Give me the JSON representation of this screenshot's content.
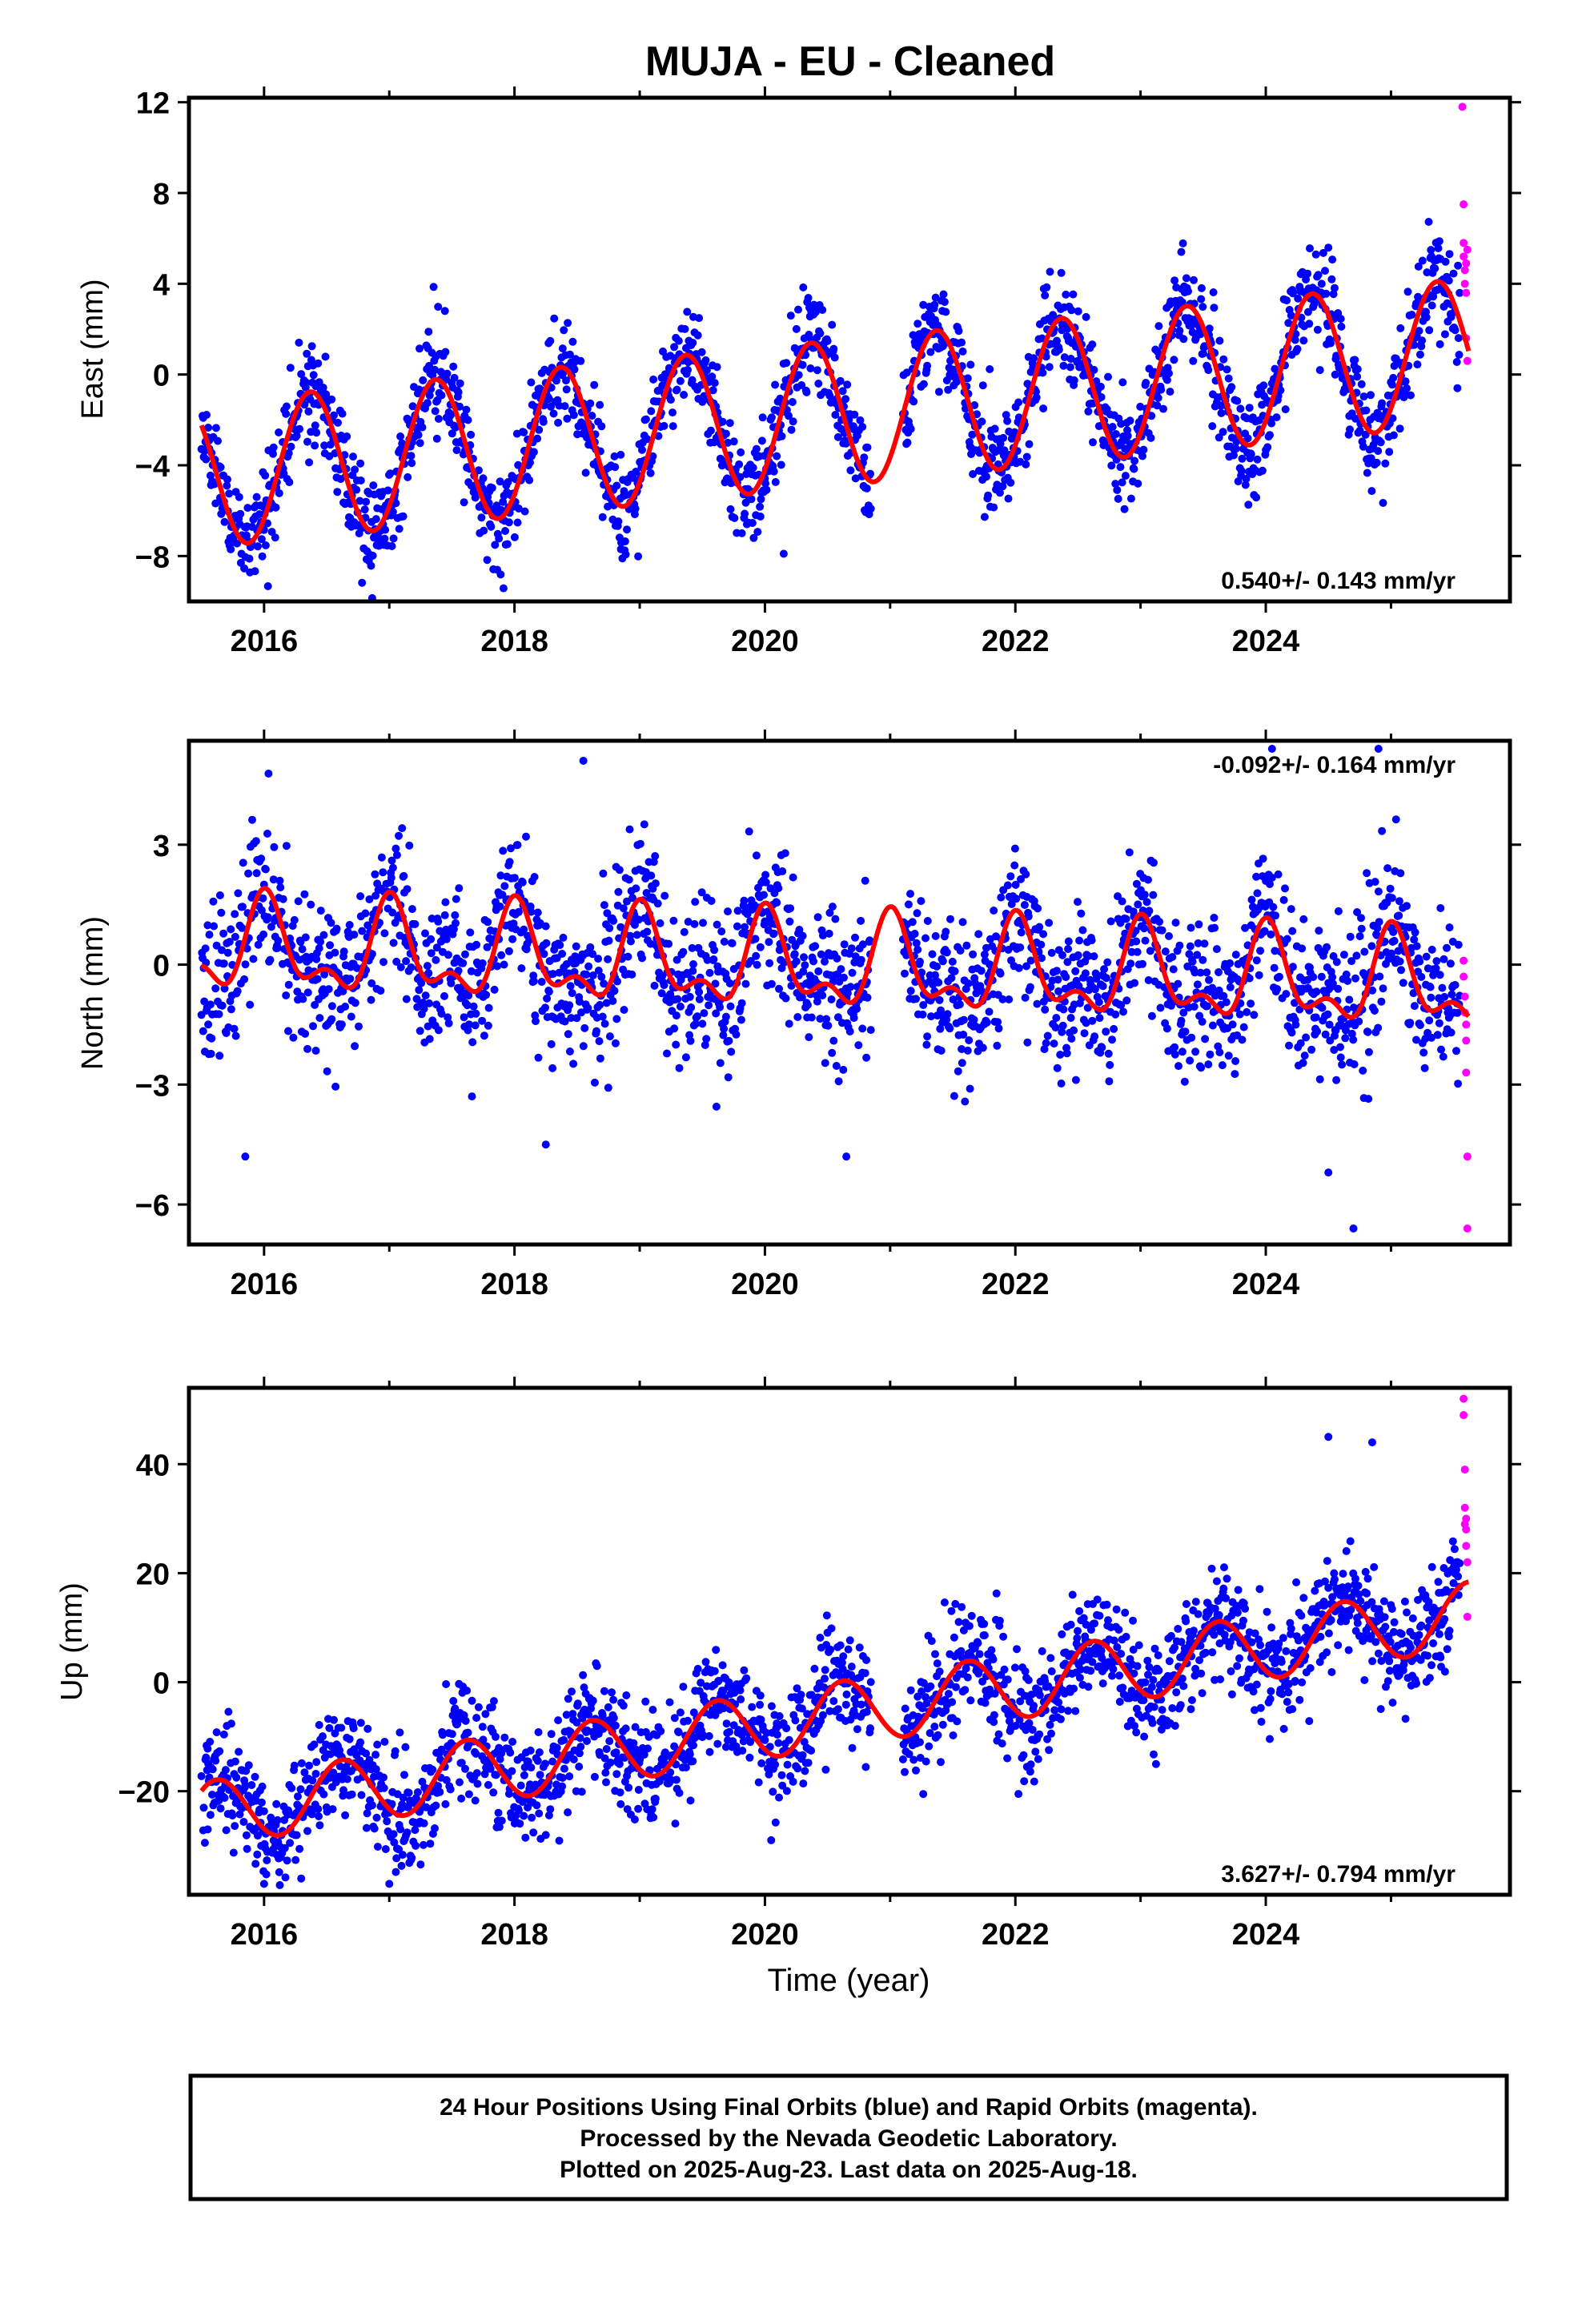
{
  "figure": {
    "title": "MUJA  - EU - Cleaned",
    "footer_lines": [
      "24 Hour Positions Using Final Orbits (blue) and Rapid Orbits (magenta).",
      "Processed by the Nevada Geodetic Laboratory.",
      "Plotted on 2025-Aug-23. Last data on 2025-Aug-18."
    ]
  },
  "colors": {
    "final_orbits": "#0000ff",
    "rapid_orbits": "#ff00ff",
    "model_fit": "#ff0000",
    "axes": "#000000",
    "background": "#ffffff"
  },
  "chart_data": [
    {
      "type": "scatter",
      "panel": "east",
      "title": "MUJA  - EU - Cleaned",
      "xlabel": "",
      "ylabel": "East (mm)",
      "xlim": [
        2015.4,
        2025.95
      ],
      "ylim": [
        -10,
        12.2
      ],
      "xticks": [
        2016,
        2018,
        2020,
        2022,
        2024
      ],
      "xtick_labels": [
        "2016",
        "2018",
        "2020",
        "2022",
        "2024"
      ],
      "yticks": [
        -8,
        -4,
        0,
        4,
        8,
        12
      ],
      "ytick_labels": [
        "−8",
        "−4",
        "0",
        "4",
        "8",
        "12"
      ],
      "rate_label": "0.540+/- 0.143 mm/yr",
      "rate_position": "bottom-right",
      "grid": false,
      "model": {
        "start": 2015.5,
        "end": 2025.62,
        "intercept": -2.0,
        "rate": 0.54,
        "amp_annual": 3.2,
        "peak_annual": 0.37,
        "amp_semiannual": 0.0,
        "peak_semiannual": 0.0
      },
      "scatter": {
        "start": 2015.5,
        "end": 2025.55,
        "step": 0.0045,
        "noise_sd": 1.1,
        "seed": 11
      },
      "series": [
        {
          "name": "",
          "color": "#0000ff",
          "values": "Final-orbit daily positions, roughly 2015.5–2025.55, scattered about ±1–2 mm around the red model"
        },
        {
          "name": "",
          "color": "#ff0000",
          "values": "Model fit"
        }
      ],
      "rapid_points": [
        {
          "x": 2025.57,
          "y": 11.8
        },
        {
          "x": 2025.58,
          "y": 7.5
        },
        {
          "x": 2025.58,
          "y": 5.8
        },
        {
          "x": 2025.58,
          "y": 5.2
        },
        {
          "x": 2025.59,
          "y": 4.6
        },
        {
          "x": 2025.59,
          "y": 4.0
        },
        {
          "x": 2025.6,
          "y": 3.6
        },
        {
          "x": 2025.6,
          "y": 1.6
        },
        {
          "x": 2025.61,
          "y": 0.6
        },
        {
          "x": 2025.61,
          "y": 5.5
        },
        {
          "x": 2025.6,
          "y": 4.9
        }
      ],
      "outliers": [
        {
          "x": 2018.85,
          "y": -7.7
        },
        {
          "x": 2020.15,
          "y": -7.9
        },
        {
          "x": 2023.95,
          "y": -4.3
        },
        {
          "x": 2016.95,
          "y": -6.6
        },
        {
          "x": 2015.9,
          "y": -7.4
        }
      ]
    },
    {
      "type": "scatter",
      "panel": "north",
      "xlabel": "",
      "ylabel": "North (mm)",
      "xlim": [
        2015.4,
        2025.95
      ],
      "ylim": [
        -7,
        5.6
      ],
      "xticks": [
        2016,
        2018,
        2020,
        2022,
        2024
      ],
      "xtick_labels": [
        "2016",
        "2018",
        "2020",
        "2022",
        "2024"
      ],
      "yticks": [
        -6,
        -3,
        0,
        3
      ],
      "ytick_labels": [
        "−6",
        "−3",
        "0",
        "3"
      ],
      "rate_label": "-0.092+/- 0.164 mm/yr",
      "rate_position": "top-right",
      "grid": false,
      "model": {
        "start": 2015.5,
        "end": 2025.62,
        "intercept": 0.0,
        "rate": -0.092,
        "amp_annual": 1.0,
        "peak_annual": 0.02,
        "amp_semiannual": 0.55,
        "peak_semiannual": 0.0
      },
      "scatter": {
        "start": 2015.5,
        "end": 2025.55,
        "step": 0.0045,
        "noise_sd": 0.95,
        "seed": 23
      },
      "series": [
        {
          "name": "",
          "color": "#0000ff",
          "values": "Final-orbit daily positions"
        },
        {
          "name": "",
          "color": "#ff0000",
          "values": "Model fit"
        }
      ],
      "rapid_points": [
        {
          "x": 2025.58,
          "y": 0.1
        },
        {
          "x": 2025.58,
          "y": -0.3
        },
        {
          "x": 2025.59,
          "y": -0.8
        },
        {
          "x": 2025.59,
          "y": -1.2
        },
        {
          "x": 2025.6,
          "y": -1.9
        },
        {
          "x": 2025.6,
          "y": -2.7
        },
        {
          "x": 2025.61,
          "y": -4.8
        },
        {
          "x": 2025.61,
          "y": -6.6
        },
        {
          "x": 2025.6,
          "y": -1.5
        }
      ],
      "outliers": [
        {
          "x": 2018.55,
          "y": 5.1
        },
        {
          "x": 2024.05,
          "y": 5.4
        },
        {
          "x": 2024.9,
          "y": 5.4
        },
        {
          "x": 2024.7,
          "y": -6.6
        },
        {
          "x": 2018.25,
          "y": -4.5
        },
        {
          "x": 2020.65,
          "y": -4.8
        },
        {
          "x": 2024.5,
          "y": -5.2
        },
        {
          "x": 2015.85,
          "y": -4.8
        }
      ]
    },
    {
      "type": "scatter",
      "panel": "up",
      "xlabel": "Time (year)",
      "ylabel": "Up (mm)",
      "xlim": [
        2015.4,
        2025.95
      ],
      "ylim": [
        -39,
        54
      ],
      "xticks": [
        2016,
        2018,
        2020,
        2022,
        2024
      ],
      "xtick_labels": [
        "2016",
        "2018",
        "2020",
        "2022",
        "2024"
      ],
      "yticks": [
        -20,
        0,
        20,
        40
      ],
      "ytick_labels": [
        "−20",
        "0",
        "20",
        "40"
      ],
      "rate_label": "3.627+/- 0.794 mm/yr",
      "rate_position": "bottom-right",
      "grid": false,
      "model": {
        "start": 2015.5,
        "end": 2025.62,
        "intercept": -8.0,
        "rate": 3.627,
        "amp_annual": 6.0,
        "peak_annual": 0.62,
        "amp_semiannual": 0.0,
        "peak_semiannual": 0.0
      },
      "scatter": {
        "start": 2015.5,
        "end": 2025.55,
        "step": 0.0045,
        "noise_sd": 5.0,
        "seed": 37
      },
      "series": [
        {
          "name": "",
          "color": "#0000ff",
          "values": "Final-orbit daily positions"
        },
        {
          "name": "",
          "color": "#ff0000",
          "values": "Model fit"
        }
      ],
      "rapid_points": [
        {
          "x": 2025.58,
          "y": 52
        },
        {
          "x": 2025.58,
          "y": 49
        },
        {
          "x": 2025.59,
          "y": 39
        },
        {
          "x": 2025.59,
          "y": 32
        },
        {
          "x": 2025.6,
          "y": 30
        },
        {
          "x": 2025.6,
          "y": 28
        },
        {
          "x": 2025.6,
          "y": 25
        },
        {
          "x": 2025.61,
          "y": 22
        },
        {
          "x": 2025.61,
          "y": 12
        },
        {
          "x": 2025.59,
          "y": 29
        }
      ],
      "outliers": [
        {
          "x": 2016.0,
          "y": -37
        },
        {
          "x": 2017.0,
          "y": -37
        },
        {
          "x": 2020.05,
          "y": -29
        },
        {
          "x": 2015.55,
          "y": -27
        },
        {
          "x": 2024.5,
          "y": 45
        },
        {
          "x": 2024.85,
          "y": 44
        }
      ]
    }
  ]
}
